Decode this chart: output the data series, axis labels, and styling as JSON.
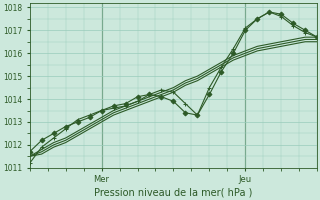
{
  "xlabel": "Pression niveau de la mer( hPa )",
  "bg_color": "#cce8dc",
  "grid_color": "#99ccbb",
  "line_color": "#2d5a27",
  "ylim": [
    1011,
    1018.2
  ],
  "xlim": [
    0,
    96
  ],
  "yticks": [
    1011,
    1012,
    1013,
    1014,
    1015,
    1016,
    1017,
    1018
  ],
  "vlines": [
    24,
    72
  ],
  "vline_labels": [
    "Mer",
    "Jeu"
  ],
  "series": [
    {
      "x": [
        0,
        4,
        8,
        12,
        16,
        20,
        24,
        28,
        32,
        36,
        40,
        44,
        48,
        52,
        56,
        60,
        64,
        68,
        72,
        76,
        80,
        84,
        88,
        92,
        96
      ],
      "y": [
        1011.5,
        1011.8,
        1012.1,
        1012.3,
        1012.6,
        1012.9,
        1013.2,
        1013.5,
        1013.7,
        1013.9,
        1014.1,
        1014.3,
        1014.5,
        1014.8,
        1015.0,
        1015.3,
        1015.6,
        1015.9,
        1016.1,
        1016.3,
        1016.4,
        1016.5,
        1016.6,
        1016.7,
        1016.7
      ],
      "marker": null,
      "markerx": []
    },
    {
      "x": [
        0,
        4,
        8,
        12,
        16,
        20,
        24,
        28,
        32,
        36,
        40,
        44,
        48,
        52,
        56,
        60,
        64,
        68,
        72,
        76,
        80,
        84,
        88,
        92,
        96
      ],
      "y": [
        1011.5,
        1011.7,
        1012.0,
        1012.2,
        1012.5,
        1012.8,
        1013.1,
        1013.4,
        1013.6,
        1013.8,
        1014.0,
        1014.2,
        1014.4,
        1014.7,
        1014.9,
        1015.2,
        1015.5,
        1015.8,
        1016.0,
        1016.2,
        1016.3,
        1016.4,
        1016.5,
        1016.6,
        1016.6
      ],
      "marker": null,
      "markerx": []
    },
    {
      "x": [
        0,
        4,
        8,
        12,
        16,
        20,
        24,
        28,
        32,
        36,
        40,
        44,
        48,
        52,
        56,
        60,
        64,
        68,
        72,
        76,
        80,
        84,
        88,
        92,
        96
      ],
      "y": [
        1011.5,
        1011.6,
        1011.9,
        1012.1,
        1012.4,
        1012.7,
        1013.0,
        1013.3,
        1013.5,
        1013.7,
        1013.9,
        1014.1,
        1014.3,
        1014.6,
        1014.8,
        1015.1,
        1015.4,
        1015.7,
        1015.9,
        1016.1,
        1016.2,
        1016.3,
        1016.4,
        1016.5,
        1016.5
      ],
      "marker": null,
      "markerx": []
    },
    {
      "x": [
        0,
        4,
        8,
        12,
        16,
        20,
        24,
        28,
        32,
        36,
        40,
        44,
        48,
        52,
        56,
        60,
        64,
        68,
        72,
        76,
        80,
        84,
        88,
        92,
        96
      ],
      "y": [
        1011.7,
        1012.2,
        1012.5,
        1012.8,
        1013.0,
        1013.2,
        1013.5,
        1013.7,
        1013.8,
        1014.1,
        1014.2,
        1014.1,
        1013.9,
        1013.4,
        1013.3,
        1014.2,
        1015.2,
        1016.0,
        1017.0,
        1017.5,
        1017.8,
        1017.7,
        1017.3,
        1017.0,
        1016.7
      ],
      "marker": "D",
      "markerx": [
        0,
        4,
        8,
        12,
        16,
        20,
        24,
        28,
        32,
        36,
        40,
        44,
        48,
        52,
        56,
        60,
        64,
        68,
        72,
        76,
        80,
        84,
        88,
        92,
        96
      ]
    },
    {
      "x": [
        0,
        4,
        8,
        12,
        16,
        20,
        24,
        28,
        32,
        36,
        40,
        44,
        48,
        52,
        56,
        60,
        64,
        68,
        72,
        76,
        80,
        84,
        88,
        92,
        96
      ],
      "y": [
        1011.2,
        1011.9,
        1012.3,
        1012.7,
        1013.1,
        1013.3,
        1013.5,
        1013.6,
        1013.7,
        1013.9,
        1014.2,
        1014.4,
        1014.3,
        1013.8,
        1013.3,
        1014.5,
        1015.4,
        1016.2,
        1017.1,
        1017.5,
        1017.8,
        1017.6,
        1017.2,
        1016.9,
        1016.7
      ],
      "marker": "+",
      "markerx": [
        0,
        4,
        8,
        12,
        16,
        20,
        24,
        28,
        32,
        36,
        40,
        44,
        48,
        52,
        56,
        60,
        64,
        68,
        72,
        76,
        80,
        84,
        88,
        92,
        96
      ]
    }
  ]
}
